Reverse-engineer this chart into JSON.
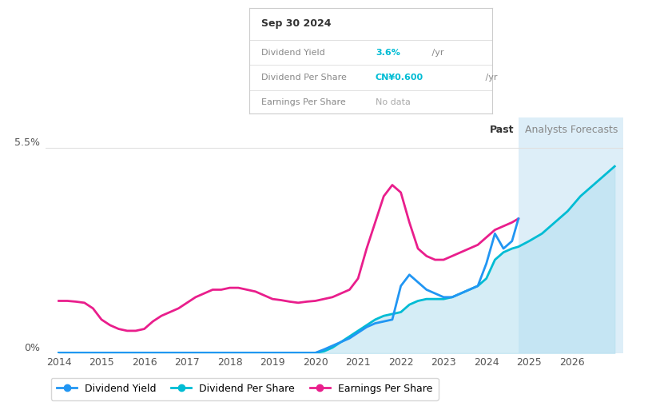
{
  "title_box": {
    "date": "Sep 30 2024",
    "rows": [
      {
        "label": "Dividend Yield",
        "value": "3.6%",
        "value_suffix": " /yr",
        "value_color": "#00bcd4"
      },
      {
        "label": "Dividend Per Share",
        "value": "CN¥0.600",
        "value_suffix": " /yr",
        "value_color": "#00bcd4"
      },
      {
        "label": "Earnings Per Share",
        "value": "No data",
        "value_suffix": "",
        "value_color": "#aaaaaa"
      }
    ]
  },
  "ytick_labels": [
    "0%",
    "5.5%"
  ],
  "ytick_values": [
    0,
    5.5
  ],
  "past_label": "Past",
  "forecast_label": "Analysts Forecasts",
  "past_x": 2024.75,
  "background_color": "#ffffff",
  "forecast_bg_color": "#ddeef8",
  "grid_color": "#e0e0e0",
  "dividend_yield": {
    "x": [
      2014.0,
      2014.2,
      2014.5,
      2014.7,
      2014.9,
      2015.0,
      2015.1,
      2015.2,
      2015.4,
      2015.6,
      2015.8,
      2016.0,
      2016.2,
      2016.5,
      2016.7,
      2017.0,
      2017.3,
      2017.5,
      2017.7,
      2018.0,
      2018.3,
      2018.5,
      2018.7,
      2019.0,
      2019.3,
      2019.5,
      2019.7,
      2020.0,
      2020.2,
      2020.4,
      2020.6,
      2020.8,
      2021.0,
      2021.2,
      2021.4,
      2021.6,
      2021.8,
      2022.0,
      2022.2,
      2022.4,
      2022.6,
      2022.8,
      2023.0,
      2023.2,
      2023.4,
      2023.6,
      2023.8,
      2024.0,
      2024.2,
      2024.4,
      2024.6,
      2024.75
    ],
    "y": [
      0.01,
      0.01,
      0.01,
      0.01,
      0.01,
      0.01,
      0.01,
      0.01,
      0.01,
      0.01,
      0.01,
      0.01,
      0.01,
      0.01,
      0.01,
      0.01,
      0.01,
      0.01,
      0.01,
      0.01,
      0.01,
      0.01,
      0.01,
      0.01,
      0.01,
      0.01,
      0.01,
      0.01,
      0.1,
      0.2,
      0.3,
      0.4,
      0.55,
      0.7,
      0.8,
      0.85,
      0.9,
      1.8,
      2.1,
      1.9,
      1.7,
      1.6,
      1.5,
      1.5,
      1.6,
      1.7,
      1.8,
      2.4,
      3.2,
      2.8,
      3.0,
      3.6
    ],
    "color": "#2196f3",
    "linewidth": 2.0,
    "zorder": 5
  },
  "dividend_per_share": {
    "x": [
      2014.0,
      2014.5,
      2015.0,
      2015.5,
      2016.0,
      2016.5,
      2017.0,
      2017.5,
      2018.0,
      2018.5,
      2019.0,
      2019.5,
      2020.0,
      2020.2,
      2020.4,
      2020.6,
      2020.8,
      2021.0,
      2021.2,
      2021.4,
      2021.6,
      2021.8,
      2022.0,
      2022.2,
      2022.4,
      2022.6,
      2022.8,
      2023.0,
      2023.2,
      2023.4,
      2023.6,
      2023.8,
      2024.0,
      2024.2,
      2024.4,
      2024.6,
      2024.75,
      2025.0,
      2025.3,
      2025.6,
      2025.9,
      2026.2,
      2026.5,
      2026.8,
      2027.0
    ],
    "y": [
      0.01,
      0.01,
      0.01,
      0.01,
      0.01,
      0.01,
      0.01,
      0.01,
      0.01,
      0.01,
      0.01,
      0.01,
      0.01,
      0.05,
      0.15,
      0.3,
      0.45,
      0.6,
      0.75,
      0.9,
      1.0,
      1.05,
      1.1,
      1.3,
      1.4,
      1.45,
      1.45,
      1.45,
      1.5,
      1.6,
      1.7,
      1.8,
      2.0,
      2.5,
      2.7,
      2.8,
      2.85,
      3.0,
      3.2,
      3.5,
      3.8,
      4.2,
      4.5,
      4.8,
      5.0
    ],
    "color": "#00bcd4",
    "linewidth": 2.0,
    "zorder": 4
  },
  "earnings_per_share": {
    "x": [
      2014.0,
      2014.2,
      2014.4,
      2014.6,
      2014.8,
      2015.0,
      2015.2,
      2015.4,
      2015.6,
      2015.8,
      2016.0,
      2016.2,
      2016.4,
      2016.6,
      2016.8,
      2017.0,
      2017.2,
      2017.4,
      2017.6,
      2017.8,
      2018.0,
      2018.2,
      2018.4,
      2018.6,
      2018.8,
      2019.0,
      2019.2,
      2019.4,
      2019.6,
      2019.8,
      2020.0,
      2020.2,
      2020.4,
      2020.6,
      2020.8,
      2021.0,
      2021.2,
      2021.4,
      2021.6,
      2021.8,
      2022.0,
      2022.2,
      2022.4,
      2022.6,
      2022.8,
      2023.0,
      2023.2,
      2023.4,
      2023.6,
      2023.8,
      2024.0,
      2024.2,
      2024.4,
      2024.6,
      2024.75
    ],
    "y": [
      1.4,
      1.4,
      1.38,
      1.35,
      1.2,
      0.9,
      0.75,
      0.65,
      0.6,
      0.6,
      0.65,
      0.85,
      1.0,
      1.1,
      1.2,
      1.35,
      1.5,
      1.6,
      1.7,
      1.7,
      1.75,
      1.75,
      1.7,
      1.65,
      1.55,
      1.45,
      1.42,
      1.38,
      1.35,
      1.38,
      1.4,
      1.45,
      1.5,
      1.6,
      1.7,
      2.0,
      2.8,
      3.5,
      4.2,
      4.5,
      4.3,
      3.5,
      2.8,
      2.6,
      2.5,
      2.5,
      2.6,
      2.7,
      2.8,
      2.9,
      3.1,
      3.3,
      3.4,
      3.5,
      3.6
    ],
    "color": "#e91e8c",
    "linewidth": 2.0,
    "zorder": 3
  },
  "legend_items": [
    {
      "label": "Dividend Yield",
      "color": "#2196f3"
    },
    {
      "label": "Dividend Per Share",
      "color": "#00bcd4"
    },
    {
      "label": "Earnings Per Share",
      "color": "#e91e8c"
    }
  ],
  "xlim": [
    2013.7,
    2027.2
  ],
  "ylim": [
    0,
    6.3
  ],
  "figsize": [
    8.21,
    5.08
  ],
  "dpi": 100
}
